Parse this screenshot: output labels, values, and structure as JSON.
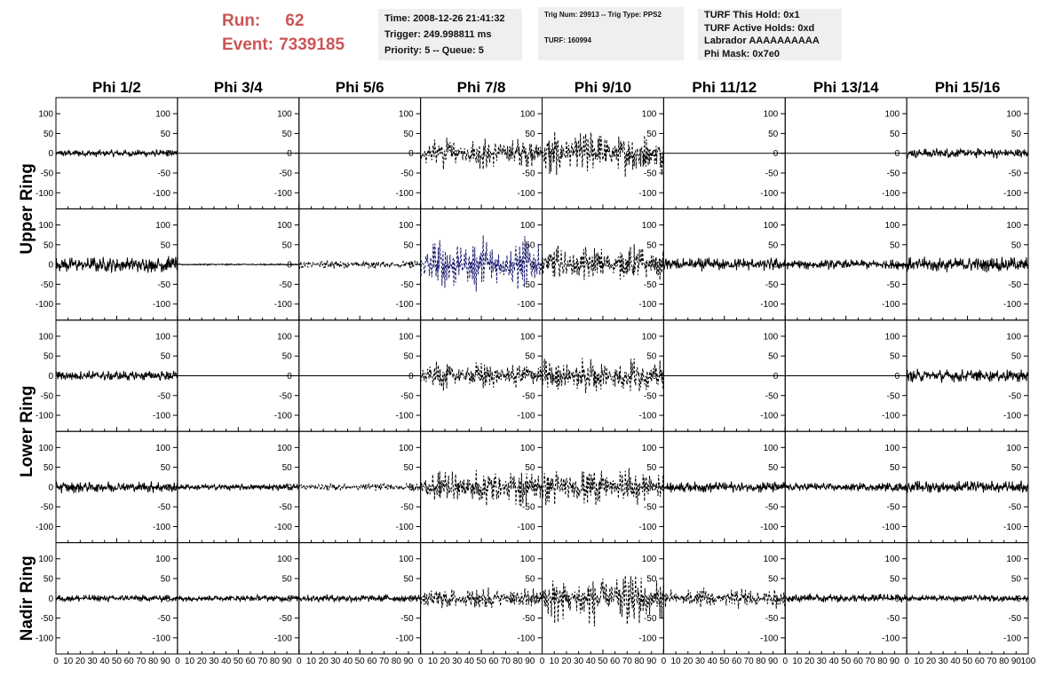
{
  "header": {
    "run_label": "Run:",
    "run_value": "62",
    "event_label": "Event:",
    "event_value": "7339185",
    "accent_color": "#cc5555"
  },
  "info_time": {
    "time": "Time: 2008-12-26 21:41:32",
    "trigger": "Trigger: 249.998811 ms",
    "priority": "Priority: 5 -- Queue: 5"
  },
  "info_trig": {
    "trig": "Trig Num: 29913 -- Trig Type: PPS2",
    "turf": "TURF: 160994"
  },
  "info_turf": {
    "hold": "TURF This Hold: 0x1",
    "active": "TURF Active Holds: 0xd",
    "labrador": "Labrador AAAAAAAAAA",
    "phimask": "Phi Mask: 0x7e0"
  },
  "chart_data": {
    "type": "line",
    "columns": [
      "Phi 1/2",
      "Phi 3/4",
      "Phi 5/6",
      "Phi 7/8",
      "Phi 9/10",
      "Phi 11/12",
      "Phi 13/14",
      "Phi 15/16"
    ],
    "ring_labels": [
      {
        "label": "Upper Ring",
        "rows": [
          0,
          1
        ]
      },
      {
        "label": "Lower Ring",
        "rows": [
          2,
          3
        ]
      },
      {
        "label": "Nadir Ring",
        "rows": [
          4
        ]
      }
    ],
    "ylim": [
      -125,
      125
    ],
    "yticks": [
      -100,
      -50,
      0,
      50,
      100
    ],
    "xlim": [
      0,
      100
    ],
    "xticks": [
      0,
      10,
      20,
      30,
      40,
      50,
      60,
      70,
      80,
      90,
      100
    ],
    "grid": false,
    "panels": [
      [
        {
          "style": "solid",
          "amp": 10
        },
        {
          "style": "flat",
          "amp": 0
        },
        {
          "style": "flat",
          "amp": 0
        },
        {
          "style": "dashed",
          "amp": 45
        },
        {
          "style": "dashed",
          "amp": 70
        },
        {
          "style": "flat",
          "amp": 0
        },
        {
          "style": "flat",
          "amp": 0
        },
        {
          "style": "solid",
          "amp": 14
        }
      ],
      [
        {
          "style": "solid",
          "amp": 22
        },
        {
          "style": "solid",
          "amp": 2
        },
        {
          "style": "dashed",
          "amp": 12
        },
        {
          "style": "dashed-blue",
          "amp": 80
        },
        {
          "style": "dashed",
          "amp": 55
        },
        {
          "style": "solid",
          "amp": 18
        },
        {
          "style": "solid",
          "amp": 14
        },
        {
          "style": "solid",
          "amp": 20
        }
      ],
      [
        {
          "style": "solid",
          "amp": 14
        },
        {
          "style": "flat",
          "amp": 0
        },
        {
          "style": "flat",
          "amp": 0
        },
        {
          "style": "dashed",
          "amp": 40
        },
        {
          "style": "dashed",
          "amp": 55
        },
        {
          "style": "flat",
          "amp": 0
        },
        {
          "style": "flat",
          "amp": 0
        },
        {
          "style": "solid",
          "amp": 18
        }
      ],
      [
        {
          "style": "solid",
          "amp": 16
        },
        {
          "style": "solid",
          "amp": 9
        },
        {
          "style": "dashed",
          "amp": 12
        },
        {
          "style": "dashed",
          "amp": 55
        },
        {
          "style": "dashed",
          "amp": 55
        },
        {
          "style": "solid",
          "amp": 16
        },
        {
          "style": "solid",
          "amp": 12
        },
        {
          "style": "solid",
          "amp": 17
        }
      ],
      [
        {
          "style": "solid",
          "amp": 10
        },
        {
          "style": "solid",
          "amp": 9
        },
        {
          "style": "solid",
          "amp": 10
        },
        {
          "style": "dashed",
          "amp": 35
        },
        {
          "style": "dashed",
          "amp": 75
        },
        {
          "style": "dashed",
          "amp": 30
        },
        {
          "style": "solid",
          "amp": 12
        },
        {
          "style": "solid",
          "amp": 9
        }
      ]
    ]
  }
}
